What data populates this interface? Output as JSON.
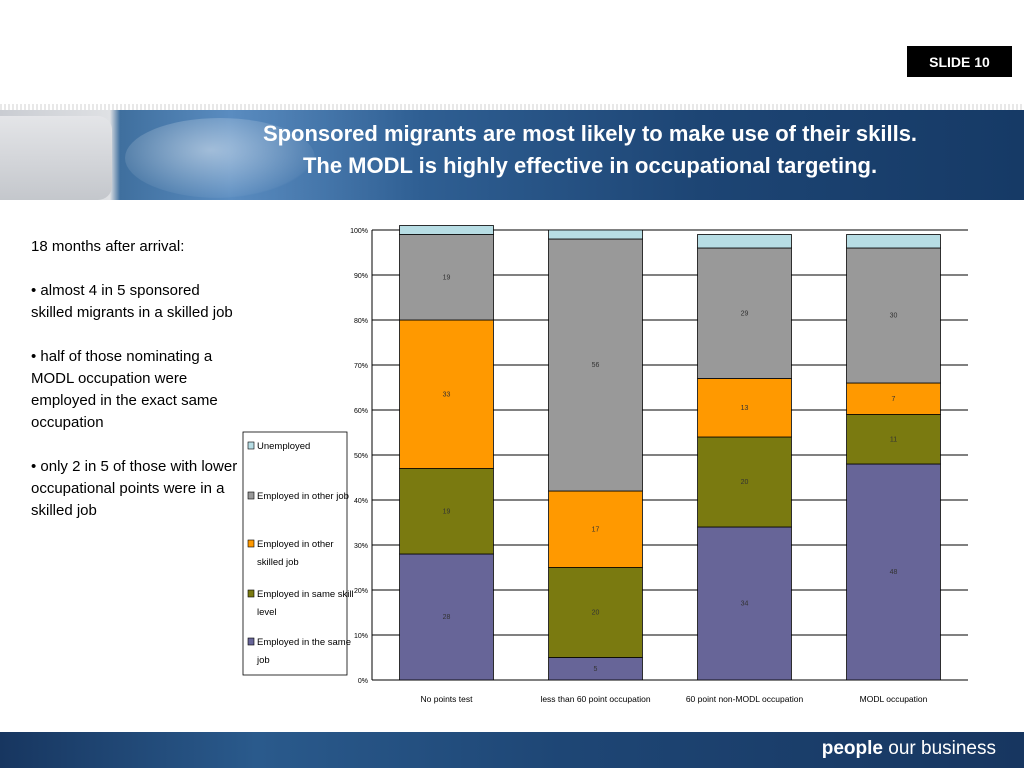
{
  "slide_badge": "SLIDE 10",
  "title_line1": "Sponsored migrants are most likely to make use of their skills.",
  "title_line2": "The MODL is highly effective in occupational targeting.",
  "bullets": [
    "18 months after arrival:",
    "• almost 4 in 5 sponsored skilled migrants in a skilled job",
    "• half of those nominating a MODL occupation were employed in the exact same occupation",
    "• only 2 in 5 of those with lower occupational points were in a skilled job"
  ],
  "footer_brand_bold": "people",
  "footer_brand_rest": " our business",
  "chart_data": {
    "type": "bar",
    "stacked": true,
    "normalized_percent": true,
    "categories": [
      "No points test",
      "less than 60 point occupation",
      "60 point non-MODL occupation",
      "MODL occupation"
    ],
    "ylim": [
      0,
      100
    ],
    "yticks": [
      "0%",
      "10%",
      "20%",
      "30%",
      "40%",
      "50%",
      "60%",
      "70%",
      "80%",
      "90%",
      "100%"
    ],
    "grid": true,
    "legend_position": "left",
    "series": [
      {
        "name": "Employed in the same job",
        "color": "#676598",
        "values": [
          28,
          5,
          34,
          48
        ],
        "labels": [
          "28",
          "5",
          "34",
          "48"
        ]
      },
      {
        "name": "Employed in same skill level",
        "color": "#7a7a10",
        "values": [
          19,
          20,
          20,
          11
        ],
        "labels": [
          "19",
          "20",
          "20",
          "11"
        ]
      },
      {
        "name": "Employed in other skilled job",
        "color": "#ff9900",
        "values": [
          33,
          17,
          13,
          7
        ],
        "labels": [
          "33",
          "17",
          "13",
          "7"
        ]
      },
      {
        "name": "Employed in other job",
        "color": "#999999",
        "values": [
          19,
          56,
          29,
          30
        ],
        "labels": [
          "19",
          "56",
          "29",
          "30"
        ]
      },
      {
        "name": "Unemployed",
        "color": "#b7dde4",
        "values": [
          2,
          2,
          3,
          3
        ],
        "labels": [
          "",
          "",
          "",
          ""
        ]
      }
    ],
    "legend_order": [
      [
        "Unemployed"
      ],
      [
        "Employed in other job"
      ],
      [
        "Employed in other",
        "skilled job"
      ],
      [
        "Employed in same skill",
        "level"
      ],
      [
        "Employed in the same",
        "job"
      ]
    ],
    "legend_colors": [
      "#b7dde4",
      "#999999",
      "#ff9900",
      "#7a7a10",
      "#676598"
    ]
  }
}
